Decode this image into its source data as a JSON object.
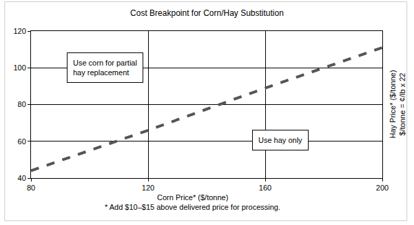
{
  "chart_data": {
    "type": "line",
    "title": "Cost Breakpoint for Corn/Hay Substitution",
    "xlabel": "Corn Price* ($/tonne)",
    "footnote": "* Add $10–$15 above delivered price for processing.",
    "ylabel": "Hay Price* ($/tonne)",
    "ylabel_note": "$/tonne = ¢/lb x 22",
    "annotations": [
      "Use corn for partial\nhay replacement",
      "Use hay only"
    ],
    "x": [
      80,
      120,
      160,
      200
    ],
    "values": [
      44,
      66,
      89,
      111
    ],
    "color": "#555555",
    "line_style": "dashed",
    "xlim": [
      80,
      200
    ],
    "xticks": [
      80,
      120,
      160,
      200
    ],
    "ylim": [
      40,
      120
    ],
    "yticks": [
      40,
      60,
      80,
      100,
      120
    ],
    "grid": true
  }
}
